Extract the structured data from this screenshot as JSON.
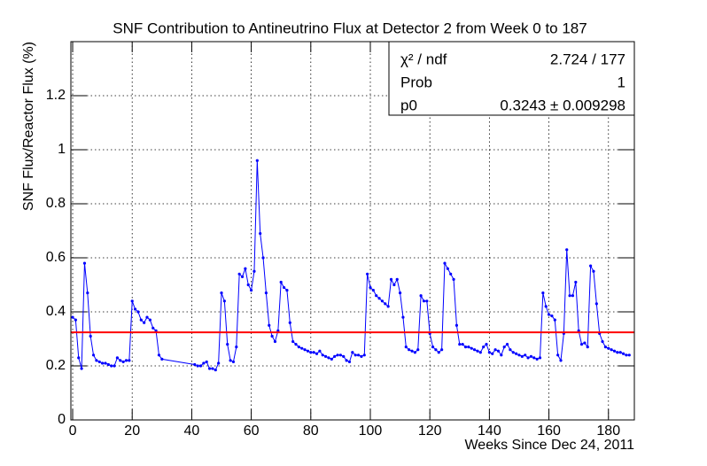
{
  "chart_data": {
    "type": "line",
    "title": "SNF Contribution to Antineutrino Flux at Detector 2 from Week 0 to 187",
    "x_label": "Weeks Since Dec 24, 2011",
    "y_label": "SNF Flux/Reactor Flux (%)",
    "xlim": [
      -0.6,
      188.7
    ],
    "ylim": [
      0,
      1.4
    ],
    "xticks": [
      0,
      20,
      40,
      60,
      80,
      100,
      120,
      140,
      160,
      180
    ],
    "yticks": [
      0,
      0.2,
      0.4,
      0.6,
      0.8,
      1,
      1.2
    ],
    "grid": true,
    "series": [
      {
        "color": "#0000ff",
        "x": [
          0,
          1,
          2,
          3,
          4,
          5,
          6,
          7,
          8,
          9,
          10,
          11,
          12,
          13,
          14,
          15,
          16,
          17,
          18,
          19,
          20,
          21,
          22,
          23,
          24,
          25,
          26,
          27,
          28,
          29,
          30,
          41,
          42,
          43,
          44,
          45,
          46,
          47,
          48,
          49,
          50,
          51,
          52,
          53,
          54,
          55,
          56,
          57,
          58,
          59,
          60,
          61,
          62,
          63,
          64,
          65,
          66,
          67,
          68,
          69,
          70,
          71,
          72,
          73,
          74,
          75,
          76,
          77,
          78,
          79,
          80,
          81,
          82,
          83,
          84,
          85,
          86,
          87,
          88,
          89,
          90,
          91,
          92,
          93,
          94,
          95,
          96,
          97,
          98,
          99,
          100,
          101,
          102,
          103,
          104,
          105,
          106,
          107,
          108,
          109,
          110,
          111,
          112,
          113,
          114,
          115,
          116,
          117,
          118,
          119,
          120,
          121,
          122,
          123,
          124,
          125,
          126,
          127,
          128,
          129,
          130,
          131,
          132,
          133,
          134,
          135,
          136,
          137,
          138,
          139,
          140,
          141,
          142,
          143,
          144,
          145,
          146,
          147,
          148,
          149,
          150,
          151,
          152,
          153,
          154,
          155,
          156,
          157,
          158,
          159,
          160,
          161,
          162,
          163,
          164,
          165,
          166,
          167,
          168,
          169,
          170,
          171,
          172,
          173,
          174,
          175,
          176,
          177,
          178,
          179,
          180,
          181,
          182,
          183,
          184,
          185,
          186,
          187
        ],
        "values": [
          0.38,
          0.37,
          0.23,
          0.19,
          0.58,
          0.47,
          0.31,
          0.24,
          0.22,
          0.215,
          0.21,
          0.21,
          0.205,
          0.2,
          0.2,
          0.23,
          0.22,
          0.215,
          0.22,
          0.22,
          0.44,
          0.41,
          0.4,
          0.37,
          0.36,
          0.38,
          0.37,
          0.34,
          0.33,
          0.24,
          0.225,
          0.205,
          0.2,
          0.2,
          0.21,
          0.215,
          0.19,
          0.19,
          0.185,
          0.21,
          0.47,
          0.44,
          0.28,
          0.22,
          0.215,
          0.27,
          0.54,
          0.53,
          0.56,
          0.5,
          0.48,
          0.55,
          0.96,
          0.69,
          0.6,
          0.47,
          0.35,
          0.31,
          0.29,
          0.33,
          0.51,
          0.49,
          0.48,
          0.36,
          0.29,
          0.28,
          0.27,
          0.265,
          0.26,
          0.255,
          0.25,
          0.25,
          0.245,
          0.255,
          0.24,
          0.235,
          0.23,
          0.225,
          0.235,
          0.24,
          0.24,
          0.235,
          0.22,
          0.215,
          0.25,
          0.24,
          0.24,
          0.235,
          0.24,
          0.54,
          0.49,
          0.48,
          0.46,
          0.45,
          0.44,
          0.43,
          0.42,
          0.52,
          0.5,
          0.52,
          0.47,
          0.38,
          0.27,
          0.26,
          0.255,
          0.25,
          0.26,
          0.46,
          0.44,
          0.44,
          0.32,
          0.27,
          0.26,
          0.25,
          0.26,
          0.58,
          0.56,
          0.54,
          0.52,
          0.35,
          0.28,
          0.28,
          0.27,
          0.27,
          0.265,
          0.26,
          0.255,
          0.25,
          0.27,
          0.28,
          0.25,
          0.245,
          0.26,
          0.255,
          0.24,
          0.27,
          0.28,
          0.26,
          0.25,
          0.245,
          0.24,
          0.235,
          0.24,
          0.23,
          0.235,
          0.23,
          0.225,
          0.23,
          0.47,
          0.42,
          0.39,
          0.385,
          0.37,
          0.24,
          0.22,
          0.32,
          0.63,
          0.46,
          0.46,
          0.51,
          0.33,
          0.28,
          0.285,
          0.27,
          0.57,
          0.55,
          0.43,
          0.32,
          0.29,
          0.27,
          0.265,
          0.26,
          0.255,
          0.25,
          0.25,
          0.245,
          0.24,
          0.24
        ]
      }
    ],
    "fit": {
      "value": 0.3243,
      "color": "#ff0000"
    },
    "stats": [
      [
        "χ² / ndf",
        "2.724 / 177"
      ],
      [
        "Prob",
        "1"
      ],
      [
        "p0",
        "0.3243 ± 0.009298"
      ]
    ]
  }
}
